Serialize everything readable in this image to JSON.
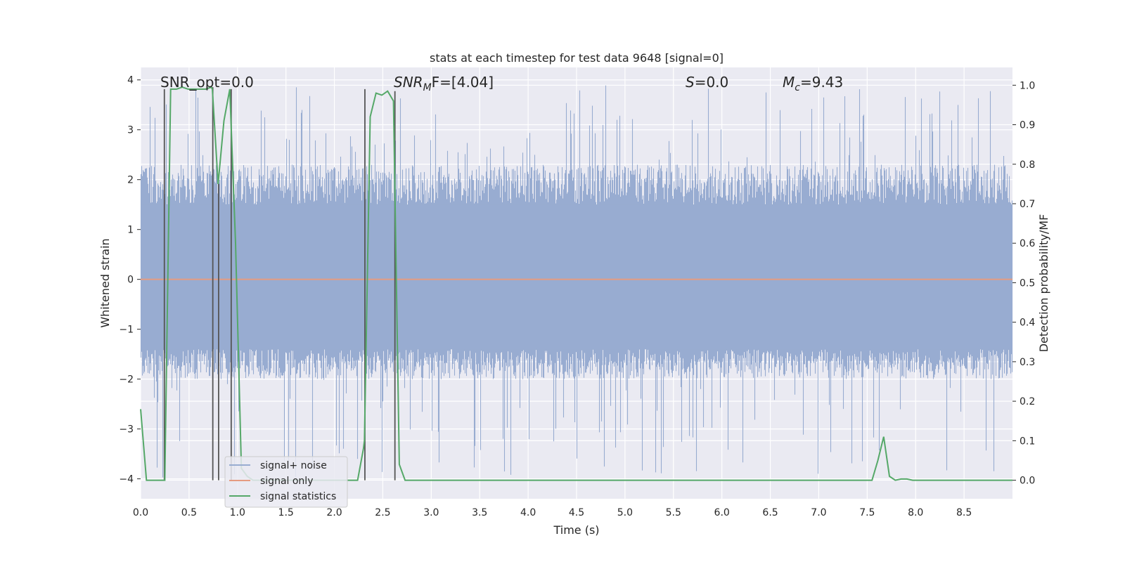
{
  "chart_data": {
    "type": "line",
    "title": "stats at each timestep for test data 9648 [signal=0]",
    "xlabel": "Time (s)",
    "ylabel_left": "Whitened strain",
    "ylabel_right": "Detection probability/MF",
    "xlim": [
      0,
      9.0
    ],
    "ylim_left": [
      -4.4,
      4.25
    ],
    "ylim_right": [
      -0.047,
      1.045
    ],
    "x_ticks": [
      "0.0",
      "0.5",
      "1.0",
      "1.5",
      "2.0",
      "2.5",
      "3.0",
      "3.5",
      "4.0",
      "4.5",
      "5.0",
      "5.5",
      "6.0",
      "6.5",
      "7.0",
      "7.5",
      "8.0",
      "8.5"
    ],
    "y_left_ticks": [
      "4",
      "3",
      "2",
      "1",
      "0",
      "−1",
      "−2",
      "−3",
      "−4"
    ],
    "y_right_ticks": [
      "1.0",
      "0.9",
      "0.8",
      "0.7",
      "0.6",
      "0.5",
      "0.4",
      "0.3",
      "0.2",
      "0.1",
      "0.0"
    ],
    "grid": true,
    "legend_position": "lower-left",
    "annotations": {
      "snr_opt": "SNR_opt=0.0",
      "snr_mf_main": "SNR",
      "snr_mf_sub": "M",
      "snr_mf_rest": "F=[4.04]",
      "s_italic": "S",
      "s_rest": "=0.0",
      "mc_main": "M",
      "mc_sub": "c",
      "mc_rest": "=9.43"
    },
    "noise_envelope": {
      "upper_typical": 2.3,
      "lower_typical": -2.0,
      "extreme_max": 3.9,
      "extreme_min": -4.0
    },
    "series": [
      {
        "name": "signal+ noise",
        "color": "#98acd1",
        "axis": "left"
      },
      {
        "name": "signal only",
        "color": "#e59b80",
        "axis": "left",
        "x": [
          0,
          9.0
        ],
        "y": [
          0,
          0
        ]
      },
      {
        "name": "signal statistics",
        "color": "#55a868",
        "axis": "right",
        "x": [
          0.0,
          0.06,
          0.12,
          0.18,
          0.24,
          0.25,
          0.31,
          0.37,
          0.43,
          0.49,
          0.55,
          0.61,
          0.67,
          0.73,
          0.74,
          0.8,
          0.86,
          0.92,
          0.98,
          1.04,
          1.1,
          1.16,
          1.22,
          1.28,
          1.34,
          2.24,
          2.3,
          2.31,
          2.37,
          2.43,
          2.49,
          2.55,
          2.61,
          2.67,
          2.73,
          3.0,
          7.0,
          7.55,
          7.61,
          7.67,
          7.73,
          7.79,
          7.85,
          7.91,
          7.97,
          9.0
        ],
        "y": [
          0.18,
          0.0,
          0.0,
          0.0,
          0.0,
          0.0,
          0.99,
          0.99,
          0.995,
          0.99,
          0.99,
          0.99,
          0.99,
          0.995,
          0.99,
          0.75,
          0.91,
          0.99,
          0.6,
          0.03,
          0.01,
          0.0,
          0.0,
          0.0,
          0.0,
          0.0,
          0.08,
          0.1,
          0.92,
          0.98,
          0.975,
          0.985,
          0.96,
          0.04,
          0.0,
          0.0,
          0.0,
          0.0,
          0.05,
          0.11,
          0.01,
          0.0,
          0.003,
          0.003,
          0.0,
          0.0
        ]
      }
    ],
    "vertical_markers": [
      {
        "x": 0.245,
        "y_from": 0.0,
        "y_to": 0.99,
        "color": "#555555"
      },
      {
        "x": 0.745,
        "y_from": 0.0,
        "y_to": 0.995,
        "color": "#555555"
      },
      {
        "x": 0.805,
        "y_from": 0.0,
        "y_to": 0.75,
        "color": "#555555"
      },
      {
        "x": 0.935,
        "y_from": 0.0,
        "y_to": 0.99,
        "color": "#555555"
      },
      {
        "x": 2.315,
        "y_from": 0.0,
        "y_to": 0.99,
        "color": "#555555"
      },
      {
        "x": 2.625,
        "y_from": 0.0,
        "y_to": 0.985,
        "color": "#555555"
      }
    ]
  }
}
